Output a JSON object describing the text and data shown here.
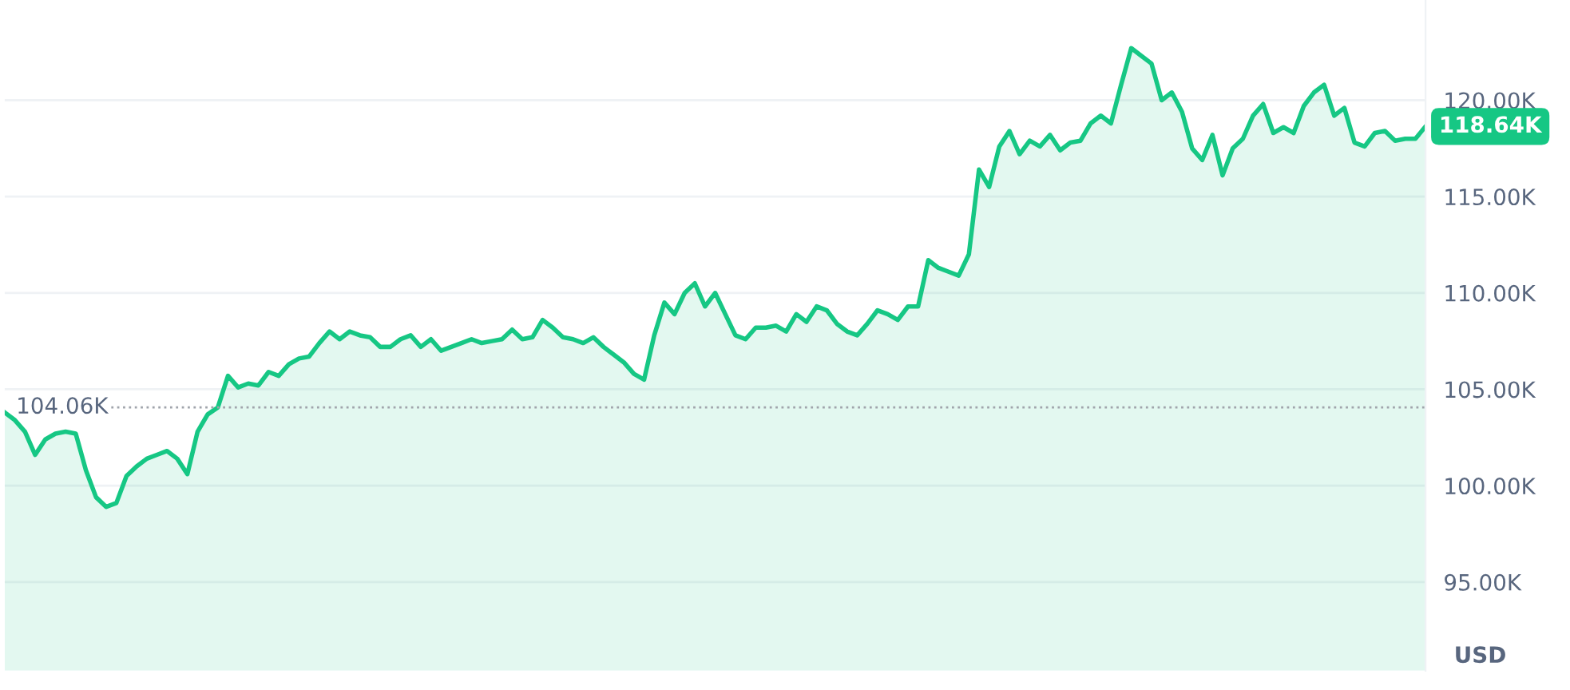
{
  "chart_data": {
    "type": "area",
    "categories": [
      null,
      null,
      null,
      null,
      null,
      null,
      null,
      null,
      null,
      null,
      null,
      null,
      null,
      null,
      null,
      null,
      null,
      null,
      null,
      null,
      null,
      null,
      null,
      null,
      null,
      null,
      null,
      null,
      null,
      null,
      null,
      null,
      null,
      null,
      null,
      null,
      null,
      null,
      null,
      null,
      null,
      null,
      null,
      null,
      null,
      null,
      null,
      null,
      null,
      null,
      null,
      null,
      null,
      null,
      null,
      null,
      null,
      null,
      null,
      null,
      null,
      null,
      null,
      null,
      null,
      null,
      null,
      null,
      null,
      null,
      null,
      null,
      null,
      null,
      null,
      null,
      null,
      null,
      null,
      null,
      null,
      null,
      null,
      null,
      null,
      null,
      null,
      null,
      null,
      null,
      null,
      null,
      null,
      null,
      null,
      null,
      null,
      null,
      null,
      null,
      null,
      null,
      null,
      null,
      null,
      null,
      null,
      null,
      null,
      null,
      null,
      null,
      null,
      null,
      null,
      null,
      null,
      null,
      null,
      null,
      null,
      null,
      null,
      null,
      null,
      null,
      null,
      null,
      null,
      null,
      null,
      null,
      null,
      null,
      null,
      null,
      null,
      null,
      null,
      null,
      null
    ],
    "series": [
      {
        "color": "#16c784",
        "values": [
          103.8,
          103.4,
          102.8,
          101.6,
          102.4,
          102.7,
          102.8,
          102.7,
          100.8,
          99.4,
          98.9,
          99.1,
          100.5,
          101.0,
          101.4,
          101.6,
          101.8,
          101.4,
          100.6,
          102.8,
          103.7,
          104.06,
          105.7,
          105.1,
          105.3,
          105.2,
          105.9,
          105.7,
          106.3,
          106.6,
          106.7,
          107.4,
          108.0,
          107.6,
          108.0,
          107.8,
          107.7,
          107.2,
          107.2,
          107.6,
          107.8,
          107.2,
          107.6,
          107.0,
          107.2,
          107.4,
          107.6,
          107.4,
          107.5,
          107.6,
          108.1,
          107.6,
          107.7,
          108.6,
          108.2,
          107.7,
          107.6,
          107.4,
          107.7,
          107.2,
          106.8,
          106.4,
          105.8,
          105.5,
          107.8,
          109.5,
          108.9,
          110.0,
          110.5,
          109.3,
          110.0,
          108.9,
          107.8,
          107.6,
          108.2,
          108.2,
          108.3,
          108.0,
          108.9,
          108.5,
          109.3,
          109.1,
          108.4,
          108.0,
          107.8,
          108.4,
          109.1,
          108.9,
          108.6,
          109.3,
          109.3,
          111.7,
          111.3,
          111.1,
          110.9,
          112.0,
          116.4,
          115.5,
          117.6,
          118.4,
          117.2,
          117.9,
          117.6,
          118.2,
          117.4,
          117.8,
          117.9,
          118.8,
          119.2,
          118.8,
          120.8,
          122.7,
          122.3,
          121.9,
          120.0,
          120.4,
          119.4,
          117.5,
          116.9,
          118.2,
          116.1,
          117.5,
          118.0,
          119.2,
          119.8,
          118.3,
          118.6,
          118.3,
          119.7,
          120.4,
          120.8,
          119.2,
          119.6,
          117.8,
          117.6,
          118.3,
          118.4,
          117.9,
          118.0,
          118.0,
          118.64
        ]
      }
    ],
    "ylim": [
      90.4,
      125.2
    ],
    "yticks": [
      {
        "value": 95,
        "label": "95.00K"
      },
      {
        "value": 100,
        "label": "100.00K"
      },
      {
        "value": 105,
        "label": "105.00K"
      },
      {
        "value": 110,
        "label": "110.00K"
      },
      {
        "value": 115,
        "label": "115.00K"
      },
      {
        "value": 120,
        "label": "120.00K"
      }
    ],
    "tick_labels": "y",
    "grid": "y",
    "ref_lines": [
      {
        "axis": "y",
        "value": 104.06,
        "label": "104.06K",
        "color": "#a0a4ab",
        "line_style": "dotted"
      }
    ],
    "annotations": [
      "118.64K",
      "USD"
    ]
  }
}
